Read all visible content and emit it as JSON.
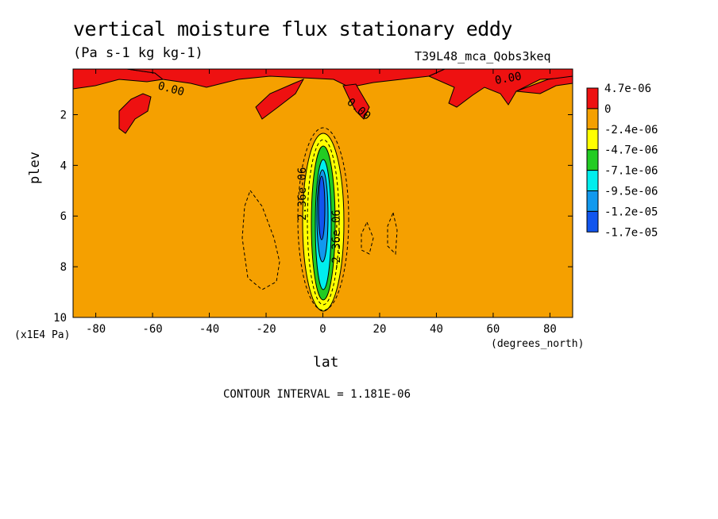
{
  "title": "vertical moisture flux stationary eddy",
  "units": "(Pa s-1 kg kg-1)",
  "run_name": "T39L48_mca_Qobs3keq",
  "contour_interval_text": "CONTOUR INTERVAL = 1.181E-06",
  "chart_data": {
    "type": "heatmap",
    "title": "vertical moisture flux stationary eddy",
    "xlabel": "lat",
    "xunits": "(degrees_north)",
    "ylabel": "plev",
    "yunits": "(x1E4 Pa)",
    "xlim": [
      -88,
      88
    ],
    "ylim": [
      0.2,
      10
    ],
    "y_inverted": true,
    "x_ticks": [
      -80,
      -60,
      -40,
      -20,
      0,
      20,
      40,
      60,
      80
    ],
    "x_tick_labels": [
      "-80",
      "-60",
      "-40",
      "-20",
      "0",
      "20",
      "40",
      "60",
      "80"
    ],
    "y_ticks": [
      2,
      4,
      6,
      8,
      10
    ],
    "y_tick_labels": [
      "2",
      "4",
      "6",
      "8",
      "10"
    ],
    "colorbar": {
      "labels": [
        "4.7e-06",
        "0",
        "-2.4e-06",
        "-4.7e-06",
        "-7.1e-06",
        "-9.5e-06",
        "-1.2e-05",
        "-1.7e-05"
      ],
      "colors": [
        "#ee1111",
        "#f5a000",
        "#f5a000",
        "#ffff00",
        "#22cc22",
        "#00eeee",
        "#1199ee",
        "#1155ee"
      ]
    },
    "background_color": "#f5a000",
    "contour_labels": [
      "0.00",
      "0.00",
      "0.00",
      "2.36e-06",
      "-2.36e-06"
    ],
    "features": [
      {
        "kind": "negative_core",
        "lat_center": 0,
        "plev_top": 3.3,
        "plev_bottom": 9.4,
        "min_value": -1.7e-05
      },
      {
        "kind": "positive_patches",
        "plev_range": [
          0.2,
          2.5
        ],
        "max_value": 4.7e-06
      }
    ]
  }
}
